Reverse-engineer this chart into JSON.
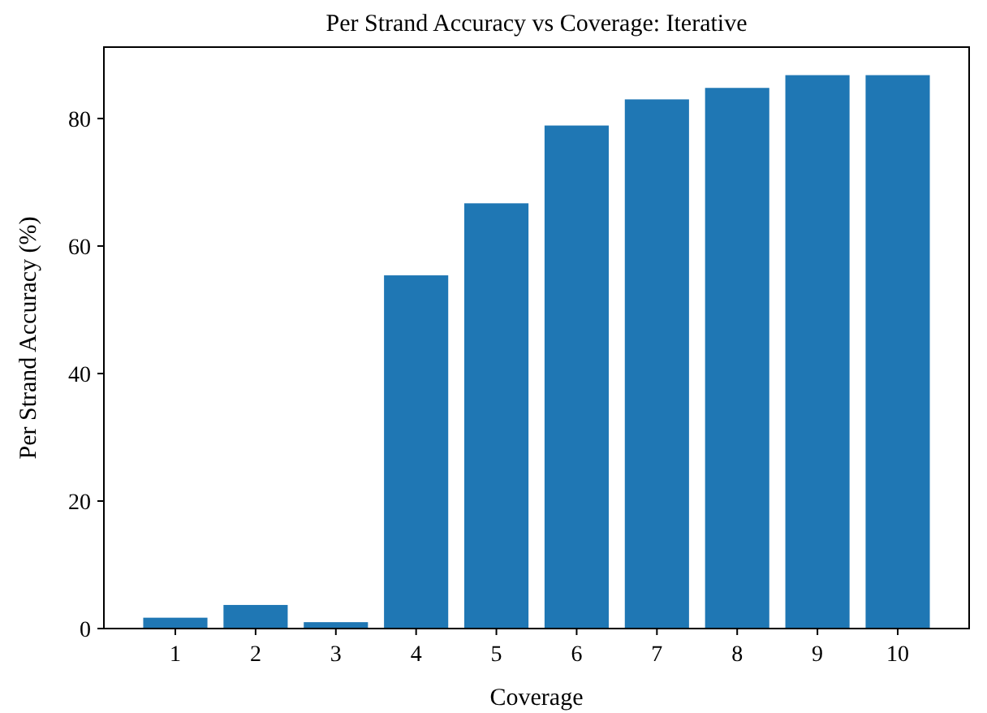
{
  "chart_data": {
    "type": "bar",
    "title": "Per Strand Accuracy vs Coverage: Iterative",
    "xlabel": "Coverage",
    "ylabel": "Per Strand Accuracy (%)",
    "categories": [
      "1",
      "2",
      "3",
      "4",
      "5",
      "6",
      "7",
      "8",
      "9",
      "10"
    ],
    "values": [
      1.7,
      3.7,
      1.0,
      55.4,
      66.7,
      78.9,
      83.0,
      84.8,
      86.8,
      86.8
    ],
    "color": "#1f77b4",
    "ylim": [
      0,
      91.2
    ],
    "yticks": [
      0,
      20,
      40,
      60,
      80
    ],
    "grid": false
  }
}
